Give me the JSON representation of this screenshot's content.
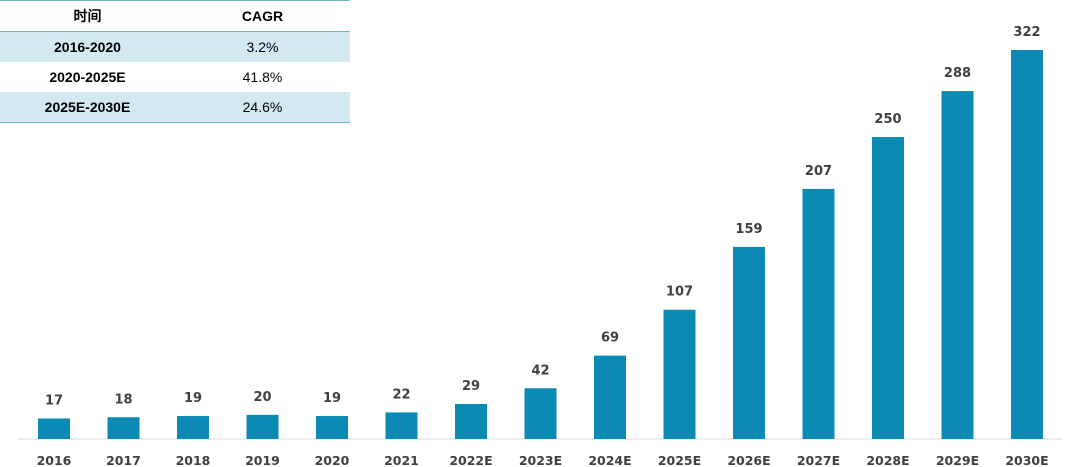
{
  "table": {
    "headers": [
      "时间",
      "CAGR"
    ],
    "rows": [
      {
        "period": "2016-2020",
        "cagr": "3.2%"
      },
      {
        "period": "2020-2025E",
        "cagr": "41.8%"
      },
      {
        "period": "2025E-2030E",
        "cagr": "24.6%"
      }
    ]
  },
  "chart_data": {
    "type": "bar",
    "categories": [
      "2016",
      "2017",
      "2018",
      "2019",
      "2020",
      "2021",
      "2022E",
      "2023E",
      "2024E",
      "2025E",
      "2026E",
      "2027E",
      "2028E",
      "2029E",
      "2030E"
    ],
    "values": [
      17,
      18,
      19,
      20,
      19,
      22,
      29,
      42,
      69,
      107,
      159,
      207,
      250,
      288,
      322
    ],
    "title": "",
    "xlabel": "",
    "ylabel": "",
    "ylim": [
      0,
      322
    ],
    "grid": false,
    "legend": "none",
    "bar_color": "#0b8ab3",
    "label_color": "#404040"
  }
}
